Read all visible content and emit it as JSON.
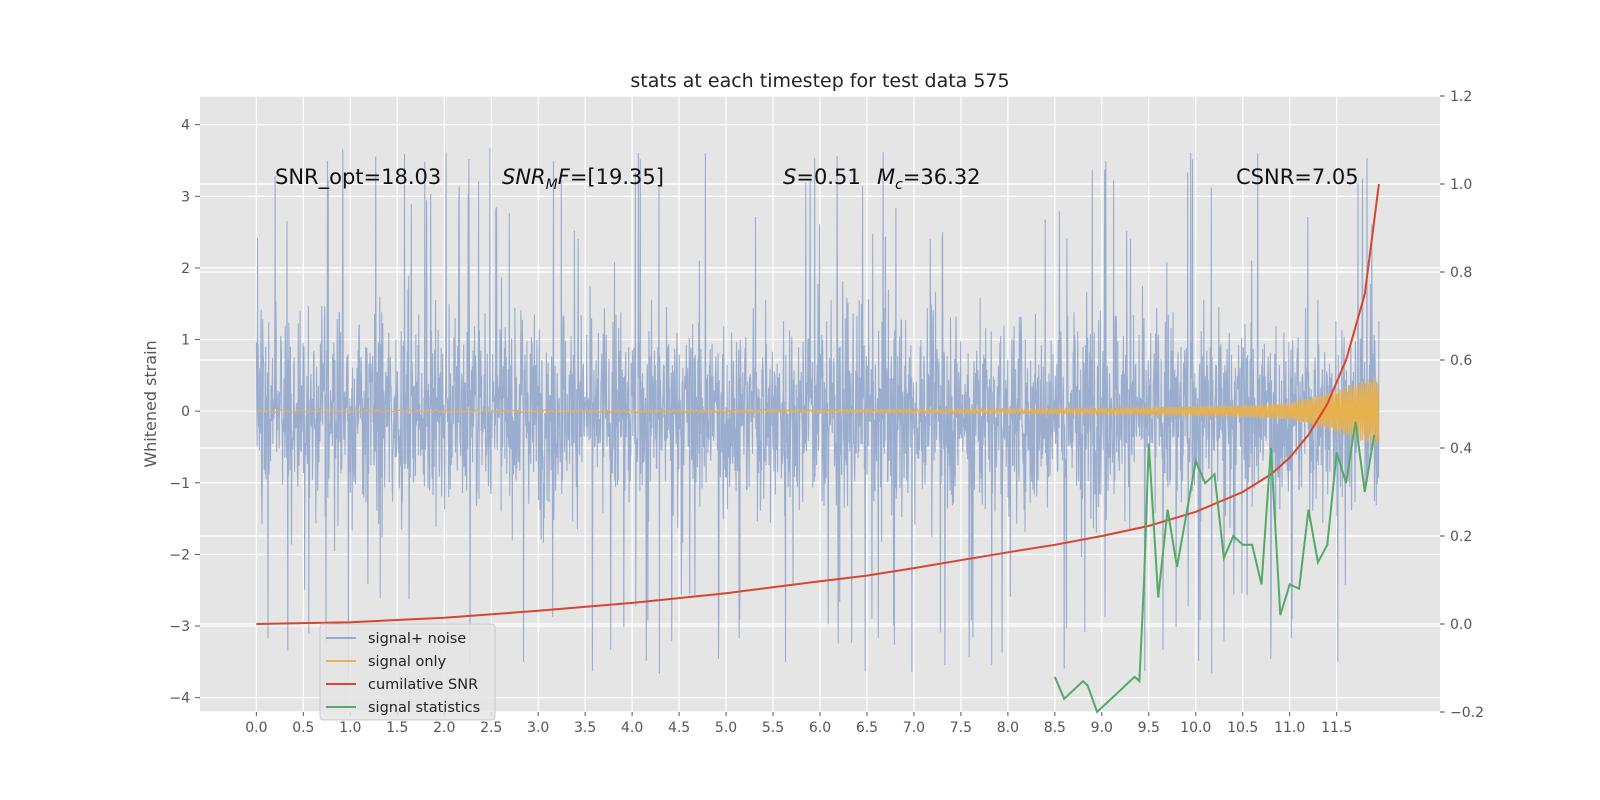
{
  "chart_data": {
    "type": "line",
    "title": "stats at each timestep for test data 575",
    "ylabel": "Whitened strain",
    "xlabel": "",
    "xlim": [
      -0.6,
      12.6
    ],
    "ylim": [
      -4.2,
      4.4
    ],
    "ylim_right": [
      -0.2,
      1.2
    ],
    "x_ticks": [
      0.0,
      0.5,
      1.0,
      1.5,
      2.0,
      2.5,
      3.0,
      3.5,
      4.0,
      4.5,
      5.0,
      5.5,
      6.0,
      6.5,
      7.0,
      7.5,
      8.0,
      8.5,
      9.0,
      9.5,
      10.0,
      10.5,
      11.0,
      11.5
    ],
    "x_tick_labels": [
      "0.0",
      "0.5",
      "1.0",
      "1.5",
      "2.0",
      "2.5",
      "3.0",
      "3.5",
      "4.0",
      "4.5",
      "5.0",
      "5.5",
      "6.0",
      "6.5",
      "7.0",
      "7.5",
      "8.0",
      "8.5",
      "9.0",
      "9.5",
      "10.0",
      "10.5",
      "11.0",
      "11.5"
    ],
    "y_ticks": [
      -4,
      -3,
      -2,
      -1,
      0,
      1,
      2,
      3,
      4
    ],
    "y_tick_labels": [
      "−4",
      "−3",
      "−2",
      "−1",
      "0",
      "1",
      "2",
      "3",
      "4"
    ],
    "y_ticks_right": [
      -0.2,
      0.0,
      0.2,
      0.4,
      0.6,
      0.8,
      1.0,
      1.2
    ],
    "y_tick_labels_right": [
      "−0.2",
      "0.0",
      "0.2",
      "0.4",
      "0.6",
      "0.8",
      "1.0",
      "1.2"
    ],
    "grid": true,
    "legend_position": "lower-left",
    "annotations": [
      {
        "id": "snr-opt",
        "text": "SNR_opt=18.03"
      },
      {
        "id": "snr-mf",
        "prefix": "SNR",
        "sub": "M",
        "suffix": "F=[19.35]"
      },
      {
        "id": "s-val",
        "prefix": "S",
        "suffix": "=0.51"
      },
      {
        "id": "mc-val",
        "prefix": "M",
        "sub": "c",
        "suffix": "=36.32"
      },
      {
        "id": "csnr",
        "text": "CSNR=7.05"
      }
    ],
    "series": [
      {
        "name": "signal+ noise",
        "axis": "left",
        "color": "#96aacd",
        "style": "dense noise trace between about -2.3 and 2.3 with spikes to about -3.8 and 4.1",
        "envelope_low": -2.3,
        "envelope_high": 2.3
      },
      {
        "name": "signal only",
        "axis": "left",
        "color": "#e8b14f",
        "style": "chirp oscillation whose amplitude grows toward the end",
        "amplitude": {
          "x": [
            0.0,
            6.0,
            9.0,
            10.5,
            11.0,
            11.5,
            11.95
          ],
          "y": [
            0.01,
            0.02,
            0.04,
            0.08,
            0.12,
            0.3,
            0.5
          ]
        }
      },
      {
        "name": "cumilative SNR",
        "axis": "right",
        "color": "#d9452f",
        "x": [
          0.0,
          1.0,
          2.0,
          3.0,
          4.0,
          5.0,
          6.0,
          6.5,
          7.0,
          7.5,
          8.0,
          8.5,
          9.0,
          9.5,
          10.0,
          10.5,
          10.8,
          11.0,
          11.2,
          11.4,
          11.6,
          11.8,
          11.95
        ],
        "y": [
          0.0,
          0.004,
          0.014,
          0.03,
          0.048,
          0.07,
          0.097,
          0.11,
          0.127,
          0.145,
          0.163,
          0.18,
          0.2,
          0.223,
          0.255,
          0.3,
          0.34,
          0.378,
          0.43,
          0.5,
          0.6,
          0.75,
          1.0
        ]
      },
      {
        "name": "signal statistics",
        "axis": "right",
        "color": "#55a868",
        "x": [
          8.5,
          8.6,
          8.7,
          8.8,
          8.85,
          8.95,
          9.35,
          9.4,
          9.45,
          9.5,
          9.6,
          9.7,
          9.8,
          9.9,
          10.0,
          10.1,
          10.2,
          10.3,
          10.4,
          10.5,
          10.6,
          10.7,
          10.8,
          10.9,
          11.0,
          11.1,
          11.2,
          11.3,
          11.4,
          11.5,
          11.6,
          11.7,
          11.8,
          11.9
        ],
        "y": [
          -0.12,
          -0.17,
          -0.15,
          -0.13,
          -0.14,
          -0.2,
          -0.12,
          -0.13,
          0.1,
          0.41,
          0.06,
          0.26,
          0.13,
          0.25,
          0.37,
          0.32,
          0.34,
          0.15,
          0.2,
          0.18,
          0.18,
          0.09,
          0.4,
          0.02,
          0.09,
          0.08,
          0.26,
          0.14,
          0.18,
          0.39,
          0.32,
          0.46,
          0.3,
          0.43
        ]
      }
    ]
  }
}
